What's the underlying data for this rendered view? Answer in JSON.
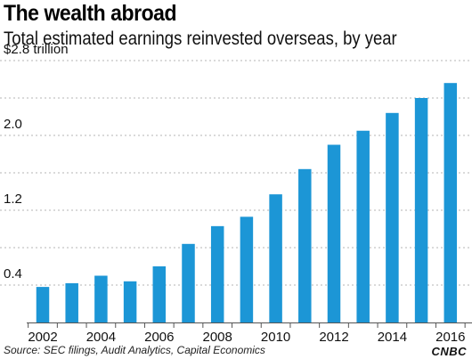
{
  "title": "The wealth abroad",
  "subtitle": "Total estimated earnings reinvested overseas, by year",
  "source": "Source: SEC filings, Audit Analytics, Capital Economics",
  "brand": "CNBC",
  "colors": {
    "bar": "#1c96d6",
    "grid": "#b5b5b5",
    "axis": "#555555"
  },
  "chart_data": {
    "type": "bar",
    "categories": [
      "2002",
      "2003",
      "2004",
      "2005",
      "2006",
      "2007",
      "2008",
      "2009",
      "2010",
      "2011",
      "2012",
      "2013",
      "2014",
      "2015",
      "2016"
    ],
    "values": [
      0.38,
      0.42,
      0.5,
      0.44,
      0.6,
      0.84,
      1.03,
      1.13,
      1.37,
      1.64,
      1.9,
      2.05,
      2.24,
      2.4,
      2.56
    ],
    "ylim": [
      0,
      2.8
    ],
    "yticks": [
      0.4,
      1.2,
      2.0
    ],
    "ytick_labels": [
      "0.4",
      "1.2",
      "2.0"
    ],
    "ytop_label": "$2.8 trillion",
    "xtick_labels": [
      "2002",
      "2004",
      "2006",
      "2008",
      "2010",
      "2012",
      "2014",
      "2016"
    ],
    "gridlines": [
      0.4,
      0.8,
      1.2,
      1.6,
      2.0,
      2.4,
      2.8
    ],
    "grid": true,
    "legend": "none"
  }
}
